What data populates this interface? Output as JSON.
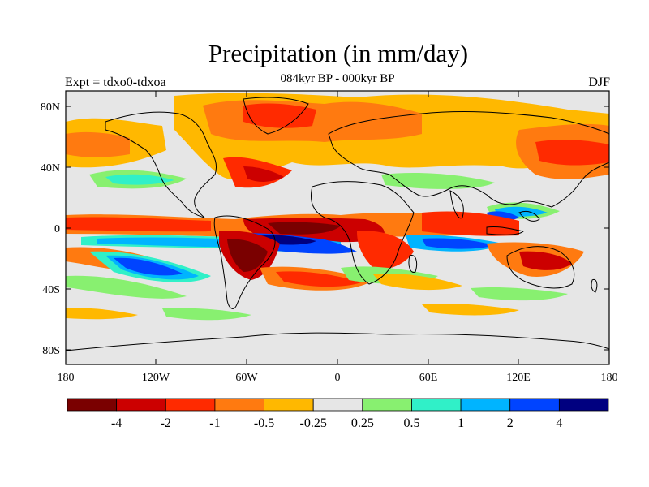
{
  "title": "Precipitation (in mm/day)",
  "subtitle_center": "084kyr BP - 000kyr BP",
  "subtitle_left": "Expt = tdxo0-tdxoa",
  "subtitle_right": "DJF",
  "axes": {
    "lon_ticks": [
      "180",
      "120W",
      "60W",
      "0",
      "60E",
      "120E",
      "180"
    ],
    "lat_ticks": [
      "80N",
      "40N",
      "0",
      "40S",
      "80S"
    ]
  },
  "colorbar": {
    "colors": [
      "#7a0000",
      "#cc0000",
      "#ff2a00",
      "#ff7a10",
      "#ffb800",
      "#e6e6e6",
      "#88f070",
      "#30f0c8",
      "#00b4ff",
      "#0044ff",
      "#000080"
    ],
    "labels": [
      "-4",
      "-2",
      "-1",
      "-0.5",
      "-0.25",
      "0.25",
      "0.5",
      "1",
      "2",
      "4"
    ]
  },
  "palette": {
    "neutral": "#e6e6e6",
    "coast": "#000000"
  }
}
